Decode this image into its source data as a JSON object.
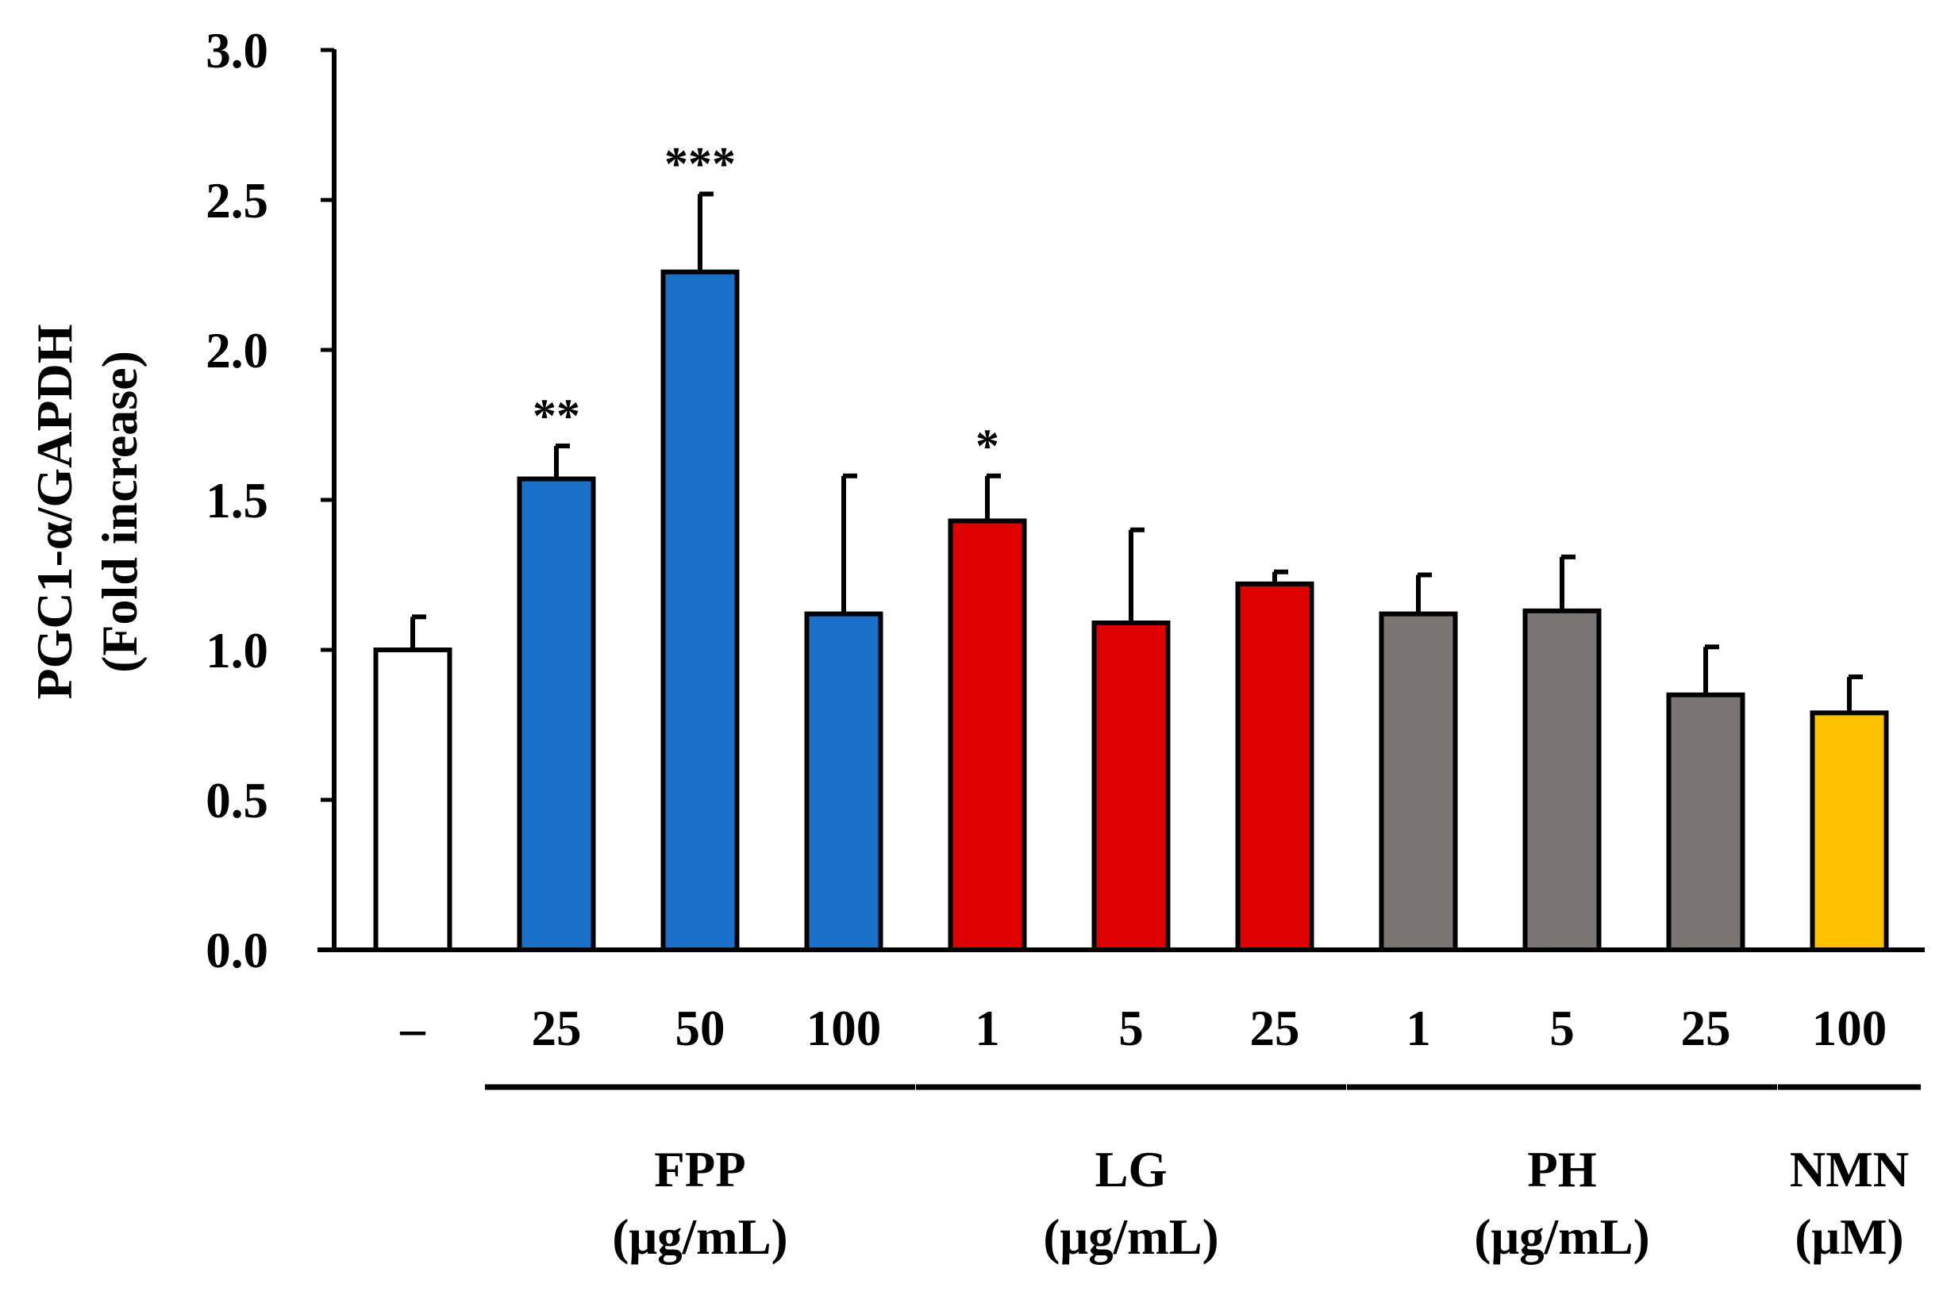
{
  "chart_data": {
    "type": "bar",
    "title": "",
    "ylabel": [
      "PGC1-α/GAPDH",
      "(Fold increase)"
    ],
    "ylim": [
      0,
      3.0
    ],
    "yticks": [
      "0.0",
      "0.5",
      "1.0",
      "1.5",
      "2.0",
      "2.5",
      "3.0"
    ],
    "grid": false,
    "categories": [
      "–",
      "25",
      "50",
      "100",
      "1",
      "5",
      "25",
      "1",
      "5",
      "25",
      "100"
    ],
    "values": [
      1.0,
      1.57,
      2.26,
      1.12,
      1.43,
      1.09,
      1.22,
      1.12,
      1.13,
      0.85,
      0.79
    ],
    "errors": [
      0.11,
      0.11,
      0.26,
      0.46,
      0.15,
      0.31,
      0.04,
      0.13,
      0.18,
      0.16,
      0.12
    ],
    "significance": [
      "",
      "**",
      "***",
      "",
      "*",
      "",
      "",
      "",
      "",
      "",
      ""
    ],
    "bar_colors": [
      "#ffffff",
      "#1a70c8",
      "#1a70c8",
      "#1a70c8",
      "#dd0000",
      "#dd0000",
      "#dd0000",
      "#7a7474",
      "#7a7474",
      "#7a7474",
      "#ffc000"
    ],
    "groups": [
      {
        "name": "FPP",
        "unit": "(μg/mL)",
        "bars": [
          1,
          2,
          3
        ]
      },
      {
        "name": "LG",
        "unit": "(μg/mL)",
        "bars": [
          4,
          5,
          6
        ]
      },
      {
        "name": "PH",
        "unit": "(μg/mL)",
        "bars": [
          7,
          8,
          9
        ]
      },
      {
        "name": "NMN",
        "unit": "(μM)",
        "bars": [
          10,
          10
        ]
      }
    ]
  }
}
